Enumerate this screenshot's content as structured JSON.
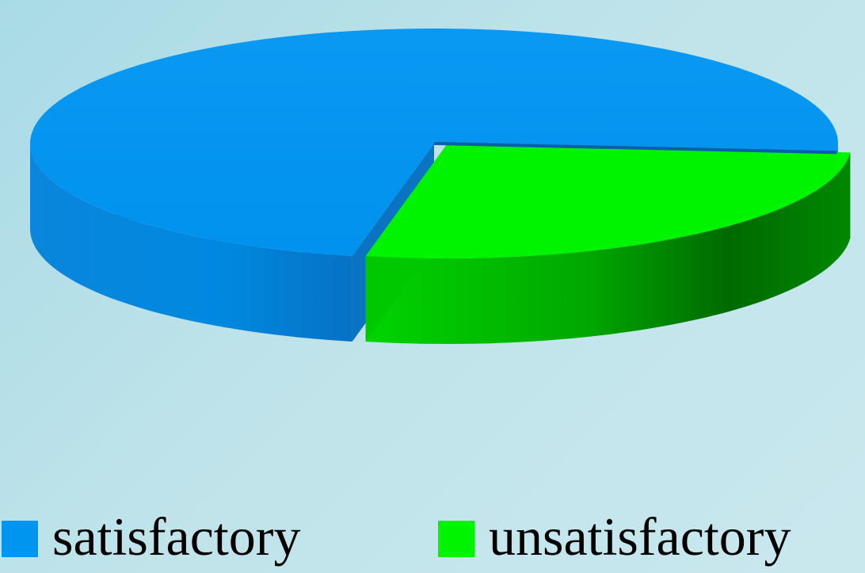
{
  "chart_data": {
    "type": "pie",
    "style": "3d-exploded",
    "series": [
      {
        "name": "satisfactory",
        "value": 73,
        "color": "#0096f0"
      },
      {
        "name": "unsatisfactory",
        "value": 27,
        "color": "#00f400"
      }
    ],
    "legend_placement": "bottom"
  },
  "colors": {
    "satisfactory_side": "#0a7fcf",
    "unsatisfactory_side": "#007a00"
  }
}
